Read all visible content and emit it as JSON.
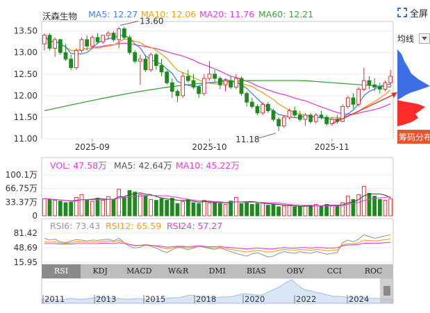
{
  "header": {
    "stock_name": "沃森生物",
    "ma": [
      {
        "label": "MA5: 12.27",
        "color": "#4a7fd6"
      },
      {
        "label": "MA10: 12.06",
        "color": "#f0a020"
      },
      {
        "label": "MA20: 11.76",
        "color": "#e040d8"
      },
      {
        "label": "MA60: 12.21",
        "color": "#3aa13a"
      }
    ]
  },
  "right_panel": {
    "fullscreen_label": "全屏",
    "ma_select_label": "均线",
    "chip_button_label": "筹码分布"
  },
  "colors": {
    "up": "#e03030",
    "down": "#1c8a1c",
    "ma5": "#4a7fd6",
    "ma10": "#f0a020",
    "ma20": "#e040d8",
    "ma60": "#3aa13a"
  },
  "chart_data": [
    {
      "type": "candlestick",
      "yticks": [
        "13.50",
        "13.00",
        "12.50",
        "12.00",
        "11.50",
        "11.00"
      ],
      "ylim": [
        11.0,
        13.72
      ],
      "xticks": [
        "2025-09",
        "2025-10",
        "2025-11"
      ],
      "annotations": [
        {
          "text": "13.60",
          "label": "high"
        },
        {
          "text": "11.18",
          "label": "low"
        }
      ],
      "candles": [
        {
          "o": 13.2,
          "h": 13.45,
          "l": 13.05,
          "c": 13.4
        },
        {
          "o": 13.4,
          "h": 13.45,
          "l": 13.05,
          "c": 13.1
        },
        {
          "o": 13.1,
          "h": 13.35,
          "l": 12.9,
          "c": 13.3
        },
        {
          "o": 13.3,
          "h": 13.32,
          "l": 12.95,
          "c": 13.0
        },
        {
          "o": 13.0,
          "h": 13.2,
          "l": 12.8,
          "c": 12.85
        },
        {
          "o": 12.85,
          "h": 12.95,
          "l": 12.6,
          "c": 12.65
        },
        {
          "o": 12.65,
          "h": 13.1,
          "l": 12.6,
          "c": 13.05
        },
        {
          "o": 13.05,
          "h": 13.35,
          "l": 13.0,
          "c": 13.3
        },
        {
          "o": 13.3,
          "h": 13.4,
          "l": 13.05,
          "c": 13.15
        },
        {
          "o": 13.15,
          "h": 13.4,
          "l": 13.1,
          "c": 13.35
        },
        {
          "o": 13.35,
          "h": 13.45,
          "l": 13.2,
          "c": 13.25
        },
        {
          "o": 13.25,
          "h": 13.4,
          "l": 13.2,
          "c": 13.4
        },
        {
          "o": 13.4,
          "h": 13.5,
          "l": 13.3,
          "c": 13.45
        },
        {
          "o": 13.45,
          "h": 13.5,
          "l": 13.25,
          "c": 13.3
        },
        {
          "o": 13.3,
          "h": 13.6,
          "l": 13.1,
          "c": 13.55
        },
        {
          "o": 13.55,
          "h": 13.6,
          "l": 13.3,
          "c": 13.35
        },
        {
          "o": 13.35,
          "h": 13.4,
          "l": 12.95,
          "c": 13.0
        },
        {
          "o": 13.0,
          "h": 13.05,
          "l": 12.75,
          "c": 12.8
        },
        {
          "o": 12.8,
          "h": 12.95,
          "l": 12.25,
          "c": 12.85
        },
        {
          "o": 12.85,
          "h": 12.95,
          "l": 12.55,
          "c": 12.6
        },
        {
          "o": 12.6,
          "h": 13.0,
          "l": 12.55,
          "c": 12.95
        },
        {
          "o": 12.95,
          "h": 13.0,
          "l": 12.6,
          "c": 12.7
        },
        {
          "o": 12.7,
          "h": 12.85,
          "l": 12.45,
          "c": 12.55
        },
        {
          "o": 12.55,
          "h": 12.6,
          "l": 12.25,
          "c": 12.3
        },
        {
          "o": 12.3,
          "h": 12.4,
          "l": 11.95,
          "c": 12.1
        },
        {
          "o": 12.1,
          "h": 12.15,
          "l": 11.85,
          "c": 12.0
        },
        {
          "o": 12.0,
          "h": 12.55,
          "l": 11.95,
          "c": 12.45
        },
        {
          "o": 12.45,
          "h": 12.6,
          "l": 12.3,
          "c": 12.35
        },
        {
          "o": 12.35,
          "h": 12.5,
          "l": 12.15,
          "c": 12.2
        },
        {
          "o": 12.2,
          "h": 12.25,
          "l": 11.95,
          "c": 12.05
        },
        {
          "o": 12.05,
          "h": 12.5,
          "l": 12.0,
          "c": 12.4
        },
        {
          "o": 12.4,
          "h": 12.8,
          "l": 12.35,
          "c": 12.5
        },
        {
          "o": 12.5,
          "h": 12.6,
          "l": 12.3,
          "c": 12.4
        },
        {
          "o": 12.4,
          "h": 12.45,
          "l": 12.15,
          "c": 12.25
        },
        {
          "o": 12.25,
          "h": 12.4,
          "l": 12.1,
          "c": 12.35
        },
        {
          "o": 12.35,
          "h": 12.45,
          "l": 12.15,
          "c": 12.2
        },
        {
          "o": 12.2,
          "h": 12.5,
          "l": 12.15,
          "c": 12.4
        },
        {
          "o": 12.4,
          "h": 12.45,
          "l": 12.0,
          "c": 12.05
        },
        {
          "o": 12.05,
          "h": 12.1,
          "l": 11.75,
          "c": 11.85
        },
        {
          "o": 11.85,
          "h": 11.95,
          "l": 11.7,
          "c": 11.75
        },
        {
          "o": 11.75,
          "h": 11.8,
          "l": 11.55,
          "c": 11.6
        },
        {
          "o": 11.6,
          "h": 11.85,
          "l": 11.55,
          "c": 11.8
        },
        {
          "o": 11.8,
          "h": 11.85,
          "l": 11.6,
          "c": 11.65
        },
        {
          "o": 11.65,
          "h": 11.7,
          "l": 11.4,
          "c": 11.45
        },
        {
          "o": 11.45,
          "h": 11.5,
          "l": 11.18,
          "c": 11.3
        },
        {
          "o": 11.3,
          "h": 11.55,
          "l": 11.25,
          "c": 11.5
        },
        {
          "o": 11.5,
          "h": 11.7,
          "l": 11.45,
          "c": 11.65
        },
        {
          "o": 11.65,
          "h": 11.75,
          "l": 11.5,
          "c": 11.55
        },
        {
          "o": 11.55,
          "h": 11.65,
          "l": 11.4,
          "c": 11.45
        },
        {
          "o": 11.45,
          "h": 11.6,
          "l": 11.3,
          "c": 11.55
        },
        {
          "o": 11.55,
          "h": 11.6,
          "l": 11.35,
          "c": 11.4
        },
        {
          "o": 11.4,
          "h": 11.6,
          "l": 11.35,
          "c": 11.55
        },
        {
          "o": 11.55,
          "h": 11.65,
          "l": 11.45,
          "c": 11.5
        },
        {
          "o": 11.5,
          "h": 11.55,
          "l": 11.3,
          "c": 11.35
        },
        {
          "o": 11.35,
          "h": 11.5,
          "l": 11.3,
          "c": 11.45
        },
        {
          "o": 11.45,
          "h": 11.55,
          "l": 11.35,
          "c": 11.4
        },
        {
          "o": 11.4,
          "h": 11.8,
          "l": 11.38,
          "c": 11.75
        },
        {
          "o": 11.75,
          "h": 12.0,
          "l": 11.7,
          "c": 11.95
        },
        {
          "o": 11.95,
          "h": 12.05,
          "l": 11.7,
          "c": 11.8
        },
        {
          "o": 11.8,
          "h": 12.2,
          "l": 11.75,
          "c": 12.15
        },
        {
          "o": 12.15,
          "h": 12.65,
          "l": 12.1,
          "c": 12.35
        },
        {
          "o": 12.35,
          "h": 12.45,
          "l": 12.15,
          "c": 12.25
        },
        {
          "o": 12.25,
          "h": 12.4,
          "l": 12.1,
          "c": 12.2
        },
        {
          "o": 12.2,
          "h": 12.3,
          "l": 12.05,
          "c": 12.15
        },
        {
          "o": 12.15,
          "h": 12.35,
          "l": 12.1,
          "c": 12.3
        },
        {
          "o": 12.3,
          "h": 12.6,
          "l": 12.2,
          "c": 12.45
        }
      ]
    },
    {
      "type": "bar",
      "legend": [
        {
          "label": "VOL: 47.58万",
          "color": "#e040d8"
        },
        {
          "label": "MA5: 42.64万",
          "color": "#555555"
        },
        {
          "label": "MA10: 45.22万",
          "color": "#e040d8"
        }
      ],
      "yticks": [
        "100.1万",
        "66.75万",
        "33.37万",
        "0"
      ],
      "ylim": [
        0,
        100.1
      ],
      "unit": "万",
      "values": [
        42,
        40,
        38,
        36,
        32,
        33,
        45,
        52,
        38,
        35,
        43,
        38,
        47,
        40,
        65,
        45,
        62,
        58,
        52,
        48,
        40,
        38,
        42,
        38,
        43,
        30,
        35,
        40,
        32,
        30,
        38,
        32,
        32,
        30,
        28,
        36,
        45,
        30,
        34,
        28,
        30,
        32,
        26,
        28,
        22,
        24,
        26,
        22,
        22,
        24,
        26,
        28,
        24,
        28,
        24,
        26,
        32,
        48,
        40,
        52,
        72,
        55,
        48,
        40,
        38,
        42
      ]
    },
    {
      "type": "line",
      "legend": [
        {
          "label": "RSI6: 73.43",
          "color": "#999999"
        },
        {
          "label": "RSI12: 65.59",
          "color": "#f0a020"
        },
        {
          "label": "RSI24: 57.27",
          "color": "#e040d8"
        }
      ],
      "yticks": [
        "81.42",
        "48.69",
        "15.95"
      ],
      "ylim": [
        15.95,
        81.42
      ],
      "series": [
        {
          "name": "RSI6",
          "values": [
            70,
            66,
            68,
            62,
            60,
            64,
            67,
            66,
            64,
            66,
            65,
            67,
            68,
            64,
            70,
            60,
            52,
            48,
            50,
            55,
            52,
            48,
            42,
            38,
            44,
            50,
            48,
            44,
            48,
            52,
            50,
            47,
            45,
            48,
            44,
            40,
            36,
            33,
            30,
            35,
            38,
            33,
            28,
            30,
            36,
            40,
            38,
            36,
            40,
            38,
            36,
            40,
            38,
            34,
            36,
            38,
            60,
            66,
            62,
            68,
            78,
            74,
            70,
            72,
            76,
            78
          ]
        },
        {
          "name": "RSI12",
          "values": [
            62,
            61,
            62,
            60,
            59,
            60,
            62,
            62,
            61,
            62,
            62,
            63,
            64,
            62,
            65,
            60,
            56,
            53,
            54,
            56,
            54,
            52,
            49,
            46,
            48,
            51,
            50,
            48,
            50,
            52,
            51,
            49,
            48,
            50,
            47,
            45,
            43,
            41,
            39,
            41,
            43,
            41,
            39,
            40,
            43,
            45,
            44,
            43,
            45,
            44,
            43,
            45,
            44,
            42,
            43,
            44,
            55,
            58,
            57,
            60,
            66,
            65,
            64,
            65,
            67,
            69
          ]
        },
        {
          "name": "RSI24",
          "values": [
            58,
            58,
            58,
            57,
            57,
            57,
            58,
            58,
            58,
            58,
            58,
            59,
            59,
            58,
            60,
            58,
            56,
            54,
            54,
            55,
            54,
            53,
            52,
            50,
            51,
            52,
            52,
            51,
            52,
            53,
            52,
            51,
            51,
            52,
            50,
            49,
            48,
            47,
            46,
            47,
            48,
            47,
            46,
            46,
            48,
            49,
            48,
            48,
            49,
            49,
            48,
            49,
            49,
            48,
            48,
            49,
            53,
            55,
            55,
            56,
            59,
            59,
            59,
            59,
            60,
            61
          ]
        }
      ]
    },
    {
      "type": "area",
      "xticks": [
        "2011",
        "2013",
        "2015",
        "2018",
        "2020",
        "2022",
        "2024"
      ]
    }
  ],
  "indicator_tabs": [
    "RSI",
    "KDJ",
    "MACD",
    "W&R",
    "DMI",
    "BIAS",
    "OBV",
    "CCI",
    "ROC"
  ],
  "active_tab": "RSI"
}
